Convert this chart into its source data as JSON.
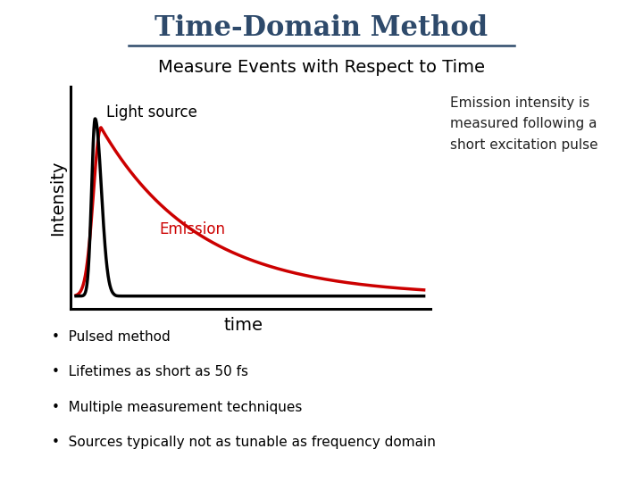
{
  "title": "Time-Domain Method",
  "subtitle": "Measure Events with Respect to Time",
  "title_color": "#2E4A6B",
  "title_fontsize": 22,
  "subtitle_fontsize": 14,
  "ylabel": "Intensity",
  "xlabel": "time",
  "light_source_label": "Light source",
  "emission_label": "Emission",
  "emission_label_color": "#CC0000",
  "annotation_text": "Emission intensity is\nmeasured following a\nshort excitation pulse",
  "annotation_color": "#222222",
  "bullet_points": [
    "Pulsed method",
    "Lifetimes as short as 50 fs",
    "Multiple measurement techniques",
    "Sources typically not as tunable as frequency domain"
  ],
  "light_source_color": "#000000",
  "emission_color": "#CC0000",
  "axis_color": "#000000",
  "background_color": "#ffffff"
}
